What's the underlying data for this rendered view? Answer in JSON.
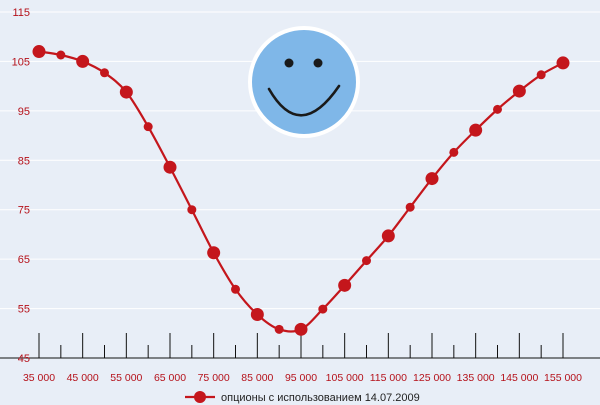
{
  "chart_data": {
    "type": "line",
    "x": [
      35000,
      40000,
      45000,
      50000,
      55000,
      60000,
      65000,
      70000,
      75000,
      80000,
      85000,
      90000,
      95000,
      100000,
      105000,
      110000,
      115000,
      120000,
      125000,
      130000,
      135000,
      140000,
      145000,
      150000,
      155000
    ],
    "series": [
      {
        "name": "опционы с использованием 14.07.2009",
        "values": [
          107.0,
          106.3,
          105.0,
          102.7,
          98.8,
          91.8,
          83.6,
          75.0,
          66.3,
          58.9,
          53.8,
          50.8,
          50.8,
          54.9,
          59.7,
          64.7,
          69.7,
          75.5,
          81.3,
          86.6,
          91.1,
          95.3,
          99.0,
          102.3,
          104.7
        ],
        "big_markers": [
          true,
          false,
          true,
          false,
          true,
          false,
          true,
          false,
          true,
          false,
          true,
          false,
          true,
          false,
          true,
          false,
          true,
          false,
          true,
          false,
          true,
          false,
          true,
          false,
          true
        ]
      }
    ],
    "yticks": [
      {
        "value": 45,
        "label": "45"
      },
      {
        "value": 55,
        "label": "55"
      },
      {
        "value": 65,
        "label": "65"
      },
      {
        "value": 75,
        "label": "75"
      },
      {
        "value": 85,
        "label": "85"
      },
      {
        "value": 95,
        "label": "95"
      },
      {
        "value": 105,
        "label": "105"
      },
      {
        "value": 115,
        "label": "115"
      }
    ],
    "xticks": [
      {
        "value": 35000,
        "label": "35 000"
      },
      {
        "value": 45000,
        "label": "45 000"
      },
      {
        "value": 55000,
        "label": "55 000"
      },
      {
        "value": 65000,
        "label": "65 000"
      },
      {
        "value": 75000,
        "label": "75 000"
      },
      {
        "value": 85000,
        "label": "85 000"
      },
      {
        "value": 95000,
        "label": "95 000"
      },
      {
        "value": 105000,
        "label": "105 000"
      },
      {
        "value": 115000,
        "label": "115 000"
      },
      {
        "value": 125000,
        "label": "125 000"
      },
      {
        "value": 135000,
        "label": "135 000"
      },
      {
        "value": 145000,
        "label": "145 000"
      },
      {
        "value": 155000,
        "label": "155 000"
      }
    ],
    "xlim": [
      35000,
      155000
    ],
    "ylim": [
      45,
      115
    ],
    "grid": true,
    "legend_position": "bottom-center",
    "title": "",
    "xlabel": "",
    "ylabel": ""
  },
  "colors": {
    "background": "#e8eef7",
    "grid": "#ffffff",
    "axis": "#111111",
    "line": "#c4161c",
    "tick_text": "#b5121b",
    "smiley_face": "#7fb7e8",
    "smiley_outline": "#ffffff",
    "smiley_features": "#1a1a1a"
  },
  "decoration": {
    "icon": "smiley-face-icon"
  }
}
